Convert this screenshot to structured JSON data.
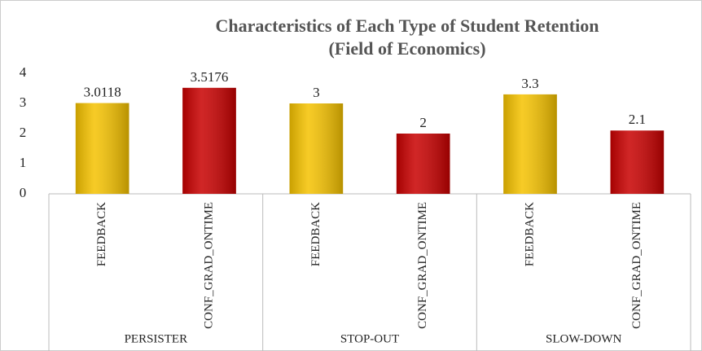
{
  "chart_data": {
    "type": "bar",
    "title_lines": [
      "Characteristics of Each Type of Student Retention",
      "(Field of Economics)"
    ],
    "groups": [
      "PERSISTER",
      "STOP-OUT",
      "SLOW-DOWN"
    ],
    "categories": [
      "FEEDBACK",
      "CONF_GRAD_ONTIME",
      "FEEDBACK",
      "CONF_GRAD_ONTIME",
      "FEEDBACK",
      "CONF_GRAD_ONTIME"
    ],
    "values": [
      3.0118,
      3.5176,
      3,
      2,
      3.3,
      2.1
    ],
    "bar_colors": [
      "#f5c200",
      "#c80000",
      "#f5c200",
      "#c80000",
      "#f5c200",
      "#c80000"
    ],
    "ylim": [
      0,
      4
    ],
    "yticks": [
      0,
      1,
      2,
      3,
      4
    ],
    "grid": false
  }
}
